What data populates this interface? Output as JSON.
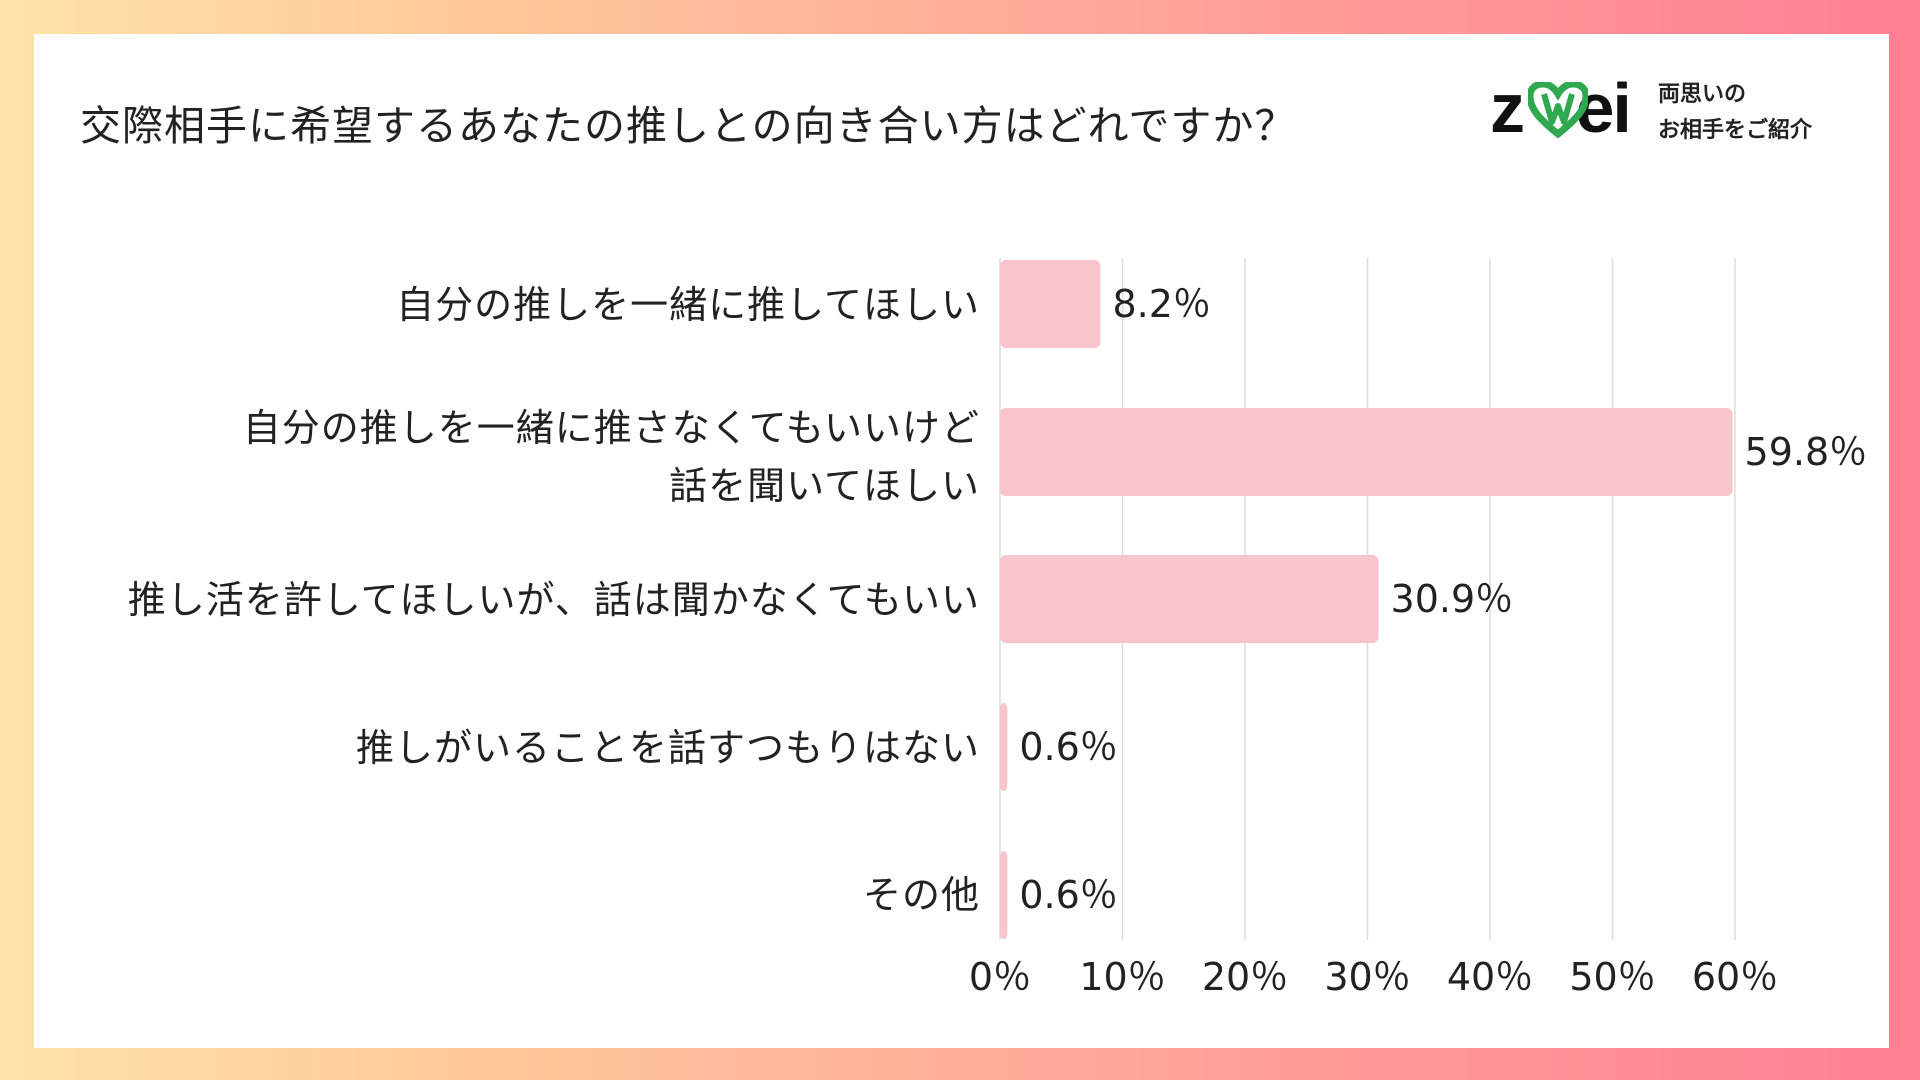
{
  "title": "交際相手に希望するあなたの推しとの向き合い方はどれですか？",
  "logo": {
    "wordmark": "zwei",
    "tagline_line1": "両思いの",
    "tagline_line2": "お相手をご紹介",
    "heart_color": "#2fa84f"
  },
  "chart_data": {
    "type": "bar",
    "orientation": "horizontal",
    "title": "交際相手に希望するあなたの推しとの向き合い方はどれですか？",
    "categories": [
      [
        "自分の推しを一緒に推してほしい"
      ],
      [
        "自分の推しを一緒に推さなくてもいいけど",
        "話を聞いてほしい"
      ],
      [
        "推し活を許してほしいが、話は聞かなくてもいい"
      ],
      [
        "推しがいることを話すつもりはない"
      ],
      [
        "その他"
      ]
    ],
    "values": [
      8.2,
      59.8,
      30.9,
      0.6,
      0.6
    ],
    "value_labels": [
      "8.2％",
      "59.8％",
      "30.9％",
      "0.6％",
      "0.6％"
    ],
    "xlim": [
      0,
      60
    ],
    "ticks": [
      0,
      10,
      20,
      30,
      40,
      50,
      60
    ],
    "tick_labels": [
      "0％",
      "10％",
      "20％",
      "30％",
      "40％",
      "50％",
      "60％"
    ],
    "grid": true,
    "bar_color": "#f7c5cb",
    "grid_color": "#dddddd",
    "xlabel": "",
    "ylabel": ""
  }
}
